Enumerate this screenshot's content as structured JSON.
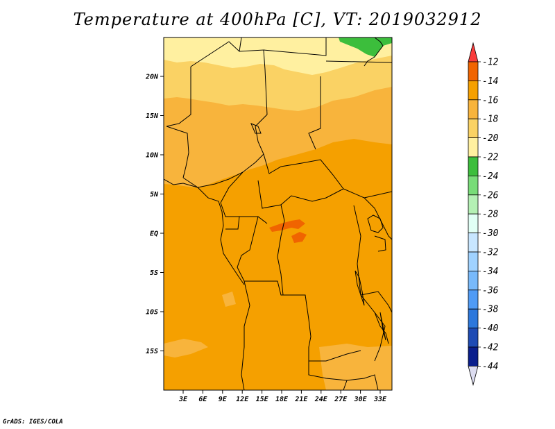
{
  "title": "Temperature at 400hPa [C], VT: 2019032912",
  "credit": "GrADS: IGES/COLA",
  "map": {
    "lat_ticks": [
      "20N",
      "15N",
      "10N",
      "5N",
      "EQ",
      "5S",
      "10S",
      "15S"
    ],
    "lon_ticks": [
      "3E",
      "6E",
      "9E",
      "12E",
      "15E",
      "18E",
      "21E",
      "24E",
      "27E",
      "30E",
      "33E"
    ]
  },
  "colorbar": {
    "labels": [
      "-12",
      "-14",
      "-16",
      "-18",
      "-20",
      "-22",
      "-24",
      "-26",
      "-28",
      "-30",
      "-32",
      "-34",
      "-36",
      "-38",
      "-40",
      "-42",
      "-44"
    ],
    "colors": [
      "#fa3c3c",
      "#f06400",
      "#f5a000",
      "#f8b43c",
      "#fad264",
      "#fff0a0",
      "#3cbe3c",
      "#78dc78",
      "#b4f0b4",
      "#e1fff5",
      "#c8e6ff",
      "#a0d2ff",
      "#78b9fa",
      "#509bf5",
      "#2d78dc",
      "#1e4bb4",
      "#0a1e8c",
      "#dcdcf0"
    ]
  }
}
